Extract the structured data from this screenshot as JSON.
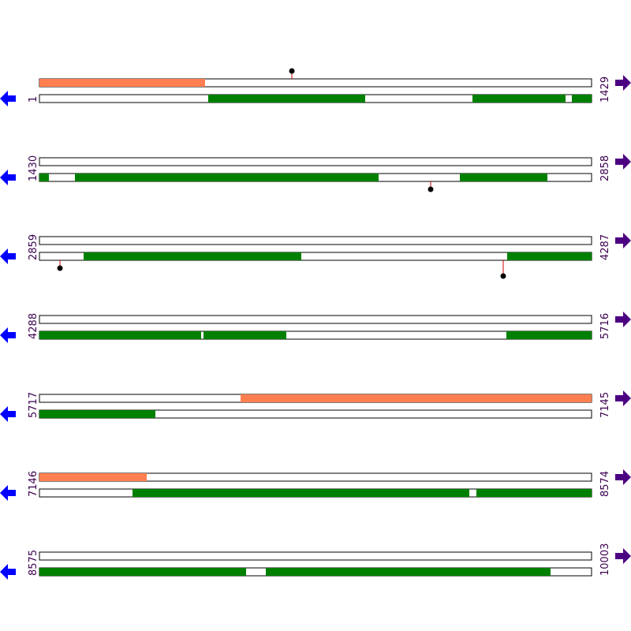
{
  "rows": [
    {
      "start": 1,
      "end": 1429
    },
    {
      "start": 1430,
      "end": 2858
    },
    {
      "start": 2859,
      "end": 4287
    },
    {
      "start": 4288,
      "end": 5716
    },
    {
      "start": 5717,
      "end": 7145
    },
    {
      "start": 7146,
      "end": 8574
    },
    {
      "start": 8575,
      "end": 10003
    }
  ]
}
